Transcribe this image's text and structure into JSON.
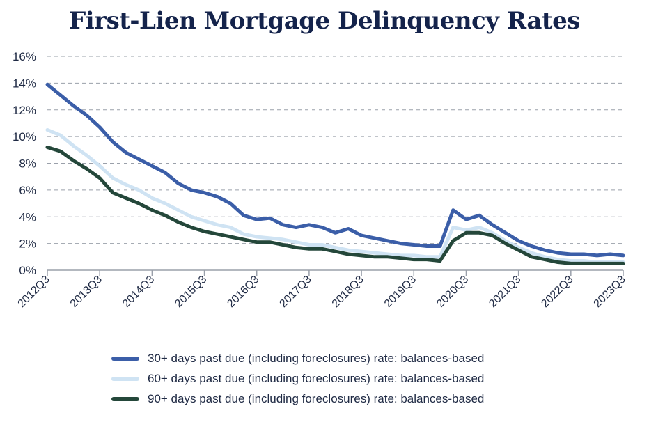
{
  "chart_data": {
    "type": "line",
    "title": "First-Lien Mortgage Delinquency Rates",
    "xlabel": "",
    "ylabel": "",
    "ylim": [
      0,
      16
    ],
    "yticks": [
      0,
      2,
      4,
      6,
      8,
      10,
      12,
      14,
      16
    ],
    "ytick_labels": [
      "0%",
      "2%",
      "4%",
      "6%",
      "8%",
      "10%",
      "12%",
      "14%",
      "16%"
    ],
    "xtick_labels": [
      "2012Q3",
      "2013Q3",
      "2014Q3",
      "2015Q3",
      "2016Q3",
      "2017Q3",
      "2018Q3",
      "2019Q3",
      "2020Q3",
      "2021Q3",
      "2022Q3",
      "2023Q3"
    ],
    "grid": true,
    "legend_position": "bottom",
    "x": [
      "2012Q3",
      "2012Q4",
      "2013Q1",
      "2013Q2",
      "2013Q3",
      "2013Q4",
      "2014Q1",
      "2014Q2",
      "2014Q3",
      "2014Q4",
      "2015Q1",
      "2015Q2",
      "2015Q3",
      "2015Q4",
      "2016Q1",
      "2016Q2",
      "2016Q3",
      "2016Q4",
      "2017Q1",
      "2017Q2",
      "2017Q3",
      "2017Q4",
      "2018Q1",
      "2018Q2",
      "2018Q3",
      "2018Q4",
      "2019Q1",
      "2019Q2",
      "2019Q3",
      "2019Q4",
      "2020Q1",
      "2020Q2",
      "2020Q3",
      "2020Q4",
      "2021Q1",
      "2021Q2",
      "2021Q3",
      "2021Q4",
      "2022Q1",
      "2022Q2",
      "2022Q3",
      "2022Q4",
      "2023Q1",
      "2023Q2",
      "2023Q3"
    ],
    "series": [
      {
        "name": "30+ days past due (including foreclosures) rate: balances-based",
        "color": "#3b5ea8",
        "values": [
          13.9,
          13.1,
          12.3,
          11.6,
          10.7,
          9.6,
          8.8,
          8.3,
          7.8,
          7.3,
          6.5,
          6.0,
          5.8,
          5.5,
          5.0,
          4.1,
          3.8,
          3.9,
          3.4,
          3.2,
          3.4,
          3.2,
          2.8,
          3.1,
          2.6,
          2.4,
          2.2,
          2.0,
          1.9,
          1.8,
          1.8,
          4.5,
          3.8,
          4.1,
          3.4,
          2.8,
          2.2,
          1.8,
          1.5,
          1.3,
          1.2,
          1.2,
          1.1,
          1.2,
          1.1
        ]
      },
      {
        "name": "60+ days past due (including foreclosures) rate: balances-based",
        "color": "#cfe3f3",
        "values": [
          10.5,
          10.1,
          9.3,
          8.6,
          7.8,
          6.9,
          6.4,
          6.0,
          5.4,
          5.0,
          4.5,
          4.0,
          3.7,
          3.4,
          3.2,
          2.7,
          2.5,
          2.4,
          2.3,
          2.1,
          1.9,
          1.9,
          1.7,
          1.5,
          1.4,
          1.3,
          1.2,
          1.1,
          1.1,
          1.0,
          1.0,
          3.2,
          3.0,
          3.2,
          2.8,
          2.2,
          1.7,
          1.3,
          1.0,
          0.8,
          0.7,
          0.7,
          0.6,
          0.6,
          0.6
        ]
      },
      {
        "name": "90+ days past due (including foreclosures) rate: balances-based",
        "color": "#24473a",
        "values": [
          9.2,
          8.9,
          8.2,
          7.6,
          6.9,
          5.8,
          5.4,
          5.0,
          4.5,
          4.1,
          3.6,
          3.2,
          2.9,
          2.7,
          2.5,
          2.3,
          2.1,
          2.1,
          1.9,
          1.7,
          1.6,
          1.6,
          1.4,
          1.2,
          1.1,
          1.0,
          1.0,
          0.9,
          0.8,
          0.8,
          0.7,
          2.2,
          2.8,
          2.8,
          2.6,
          2.0,
          1.5,
          1.0,
          0.8,
          0.6,
          0.5,
          0.5,
          0.5,
          0.5,
          0.5
        ]
      }
    ]
  }
}
